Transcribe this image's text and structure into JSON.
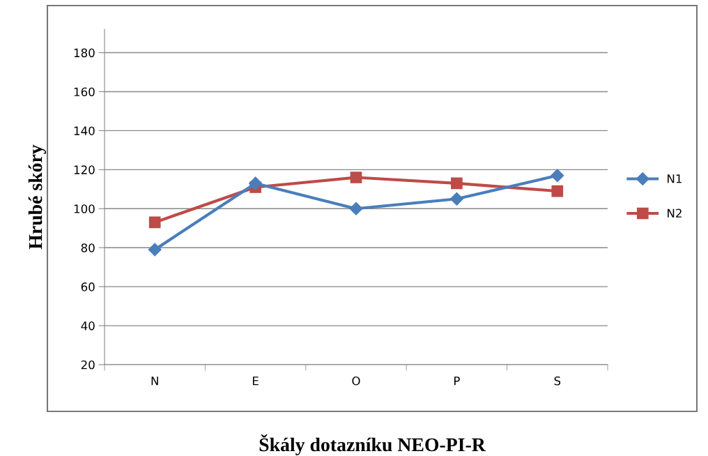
{
  "chart_data": {
    "type": "line",
    "xlabel": "Škály dotazníku NEO-PI-R",
    "ylabel": "Hrubé skóry",
    "categories": [
      "N",
      "E",
      "O",
      "P",
      "S"
    ],
    "series": [
      {
        "name": "N1",
        "color": "#4a7ebb",
        "values": [
          79,
          113,
          100,
          105,
          117
        ],
        "marker": "diamond"
      },
      {
        "name": "N2",
        "color": "#be4b48",
        "values": [
          93,
          111,
          116,
          113,
          109
        ],
        "marker": "square"
      }
    ],
    "ylim": [
      20,
      192
    ],
    "yticks": [
      20,
      40,
      60,
      80,
      100,
      120,
      140,
      160,
      180
    ],
    "grid": "y",
    "legend": "right",
    "line_style": "solid"
  }
}
